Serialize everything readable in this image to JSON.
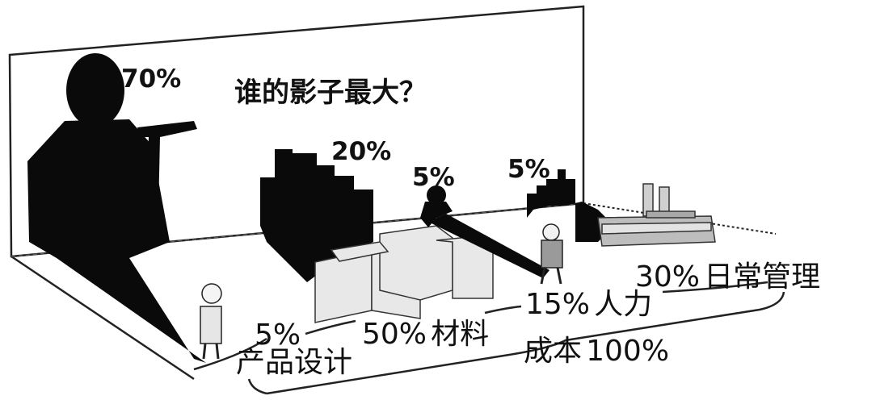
{
  "title": "谁的影子最大？",
  "items": [
    {
      "shadow_label": "70%",
      "cost_label": "5%",
      "category": "产品设计"
    },
    {
      "shadow_label": "20%",
      "cost_label": "50%",
      "category": "材料"
    },
    {
      "shadow_label": "5%",
      "cost_label": "15%",
      "category": "人力"
    },
    {
      "shadow_label": "5%",
      "cost_label": "30%",
      "category": "日常管理"
    }
  ],
  "total": {
    "label": "成本",
    "value": "100%"
  }
}
